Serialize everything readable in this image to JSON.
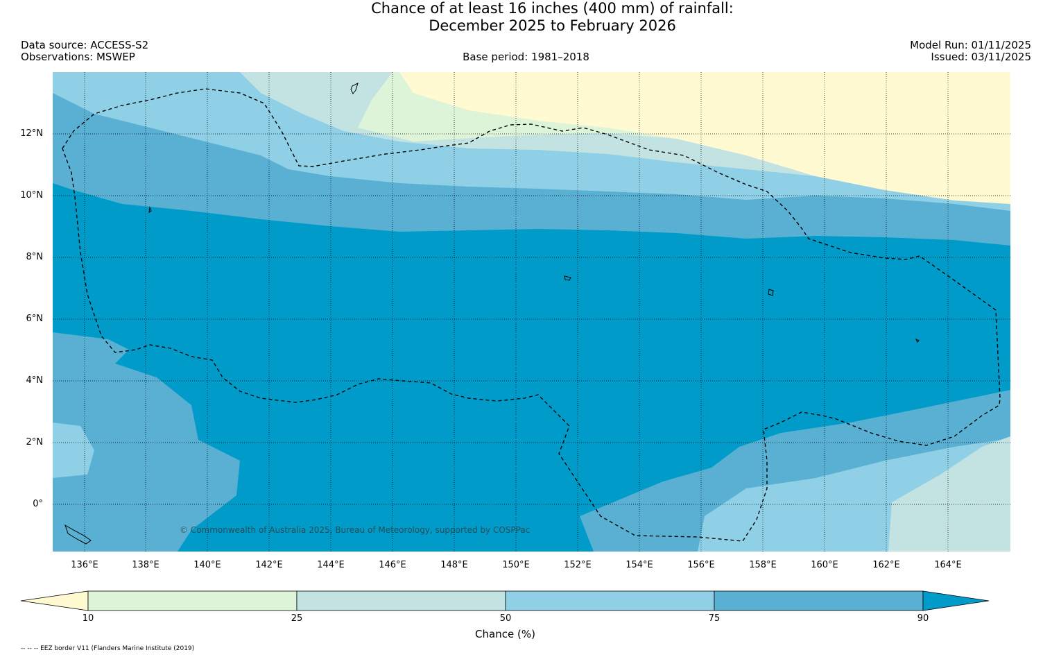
{
  "title": {
    "line1": "Chance of at least 16 inches (400  mm) of rainfall:",
    "line2": "December 2025 to February 2026"
  },
  "header": {
    "data_source": "Data source: ACCESS-S2",
    "observations": "Observations: MSWEP",
    "base_period": "Base period: 1981–2018",
    "model_run": "Model Run: 01/11/2025",
    "issued": "Issued: 03/11/2025"
  },
  "map": {
    "lat_labels": [
      "12°N",
      "10°N",
      "8°N",
      "6°N",
      "4°N",
      "2°N",
      "0°"
    ],
    "lon_labels": [
      "136°E",
      "138°E",
      "140°E",
      "142°E",
      "144°E",
      "146°E",
      "148°E",
      "150°E",
      "152°E",
      "154°E",
      "156°E",
      "158°E",
      "160°E",
      "162°E",
      "164°E"
    ],
    "copyright": "© Commonwealth of Australia 2025, Bureau of Meteorology, supported by COSPPac",
    "colors": {
      "lt10": "#fffad2",
      "c10_25": "#def4d8",
      "c25_50": "#c3e3e3",
      "c50_75": "#8fd0e6",
      "c75_90": "#5ab0d3",
      "gt90": "#009bc8"
    }
  },
  "colorbar": {
    "ticks": [
      "10",
      "25",
      "50",
      "75",
      "90"
    ],
    "label": "Chance (%)"
  },
  "footnote": "-- -- -- EEZ border V11 (Flanders Marine Institute (2019)"
}
